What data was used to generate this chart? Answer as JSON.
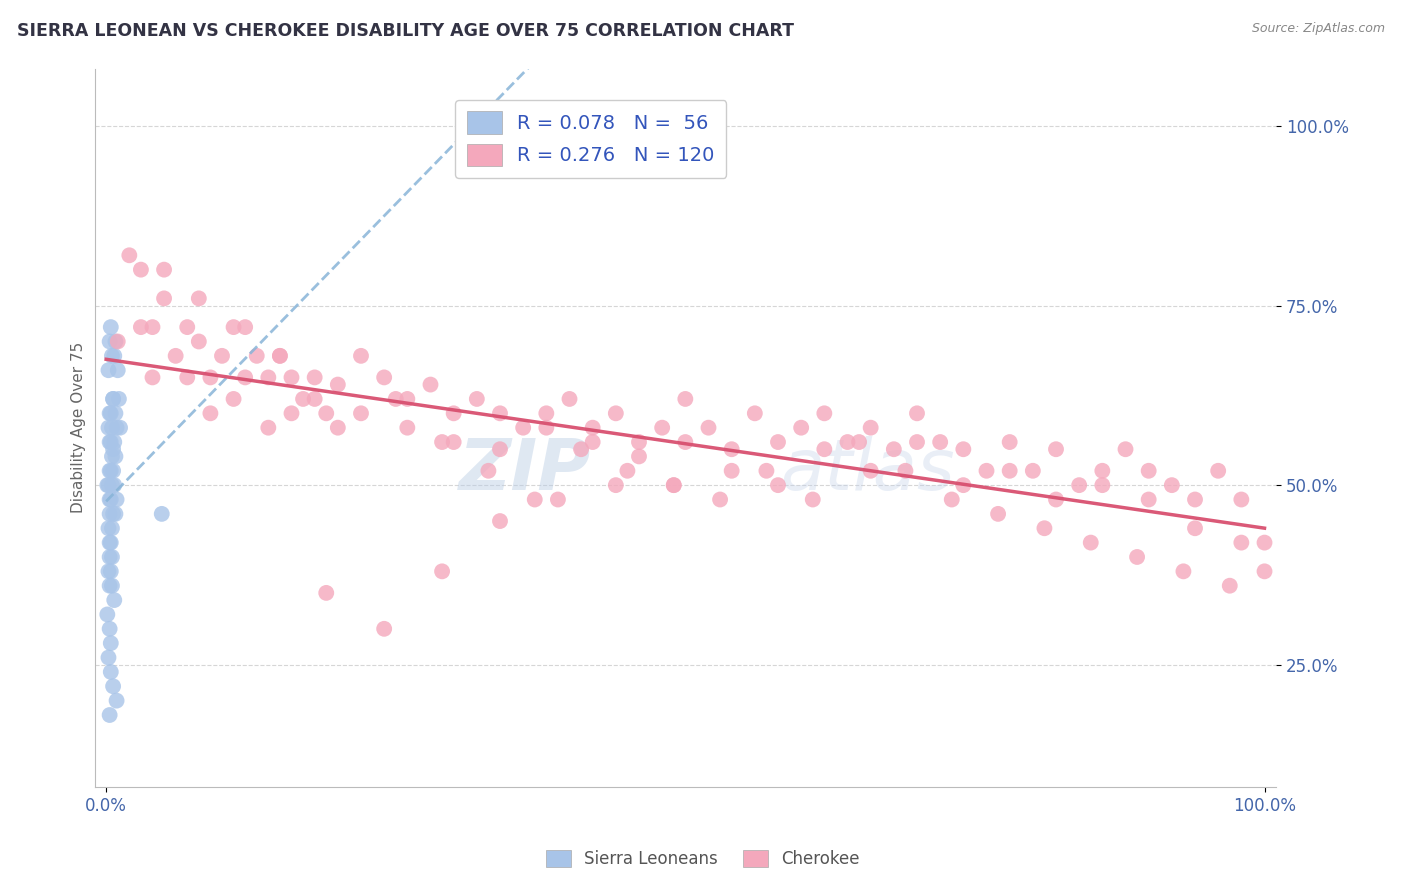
{
  "title": "SIERRA LEONEAN VS CHEROKEE DISABILITY AGE OVER 75 CORRELATION CHART",
  "source": "Source: ZipAtlas.com",
  "ylabel": "Disability Age Over 75",
  "legend_label1": "Sierra Leoneans",
  "legend_label2": "Cherokee",
  "r1": 0.078,
  "n1": 56,
  "r2": 0.276,
  "n2": 120,
  "color1": "#a8c4e8",
  "color2": "#f4a8bc",
  "trendline1_color": "#88b4d8",
  "trendline2_color": "#d85070",
  "watermark_color": "#c8d8ee",
  "background_color": "#ffffff",
  "grid_color": "#cccccc",
  "title_color": "#333344",
  "axis_label_color": "#4466aa",
  "ylabel_color": "#666666",
  "source_color": "#888888",
  "legend_text_color": "#3355bb",
  "bottom_legend_color": "#555555",
  "sierra_x": [
    0.4,
    0.8,
    1.2,
    0.5,
    0.3,
    0.6,
    1.0,
    0.7,
    0.2,
    0.9,
    0.4,
    1.1,
    0.6,
    0.8,
    0.3,
    0.5,
    0.4,
    0.2,
    0.7,
    0.6,
    0.3,
    0.5,
    0.8,
    0.4,
    0.6,
    0.3,
    0.2,
    0.7,
    0.1,
    0.5,
    0.3,
    0.4,
    0.9,
    0.3,
    0.6,
    0.8,
    0.5,
    0.2,
    0.3,
    0.4,
    0.5,
    0.3,
    0.4,
    0.2,
    0.3,
    0.5,
    0.7,
    0.1,
    0.3,
    0.4,
    4.8,
    0.2,
    0.4,
    0.6,
    0.9,
    0.3
  ],
  "sierra_y": [
    72,
    70,
    58,
    68,
    70,
    62,
    66,
    68,
    66,
    58,
    60,
    62,
    62,
    60,
    60,
    58,
    56,
    58,
    56,
    55,
    56,
    54,
    54,
    52,
    52,
    52,
    50,
    50,
    50,
    50,
    48,
    48,
    48,
    46,
    46,
    46,
    44,
    44,
    42,
    42,
    40,
    40,
    38,
    38,
    36,
    36,
    34,
    32,
    30,
    28,
    46,
    26,
    24,
    22,
    20,
    18
  ],
  "cherokee_x": [
    1,
    2,
    3,
    4,
    5,
    6,
    7,
    8,
    9,
    10,
    11,
    12,
    13,
    14,
    15,
    16,
    17,
    18,
    19,
    20,
    22,
    24,
    26,
    28,
    30,
    32,
    34,
    36,
    38,
    40,
    42,
    44,
    46,
    48,
    50,
    52,
    54,
    56,
    58,
    60,
    62,
    64,
    66,
    68,
    70,
    72,
    74,
    76,
    78,
    80,
    82,
    84,
    86,
    88,
    90,
    92,
    94,
    96,
    98,
    100,
    5,
    8,
    12,
    15,
    18,
    22,
    26,
    30,
    34,
    38,
    42,
    46,
    50,
    54,
    58,
    62,
    66,
    70,
    74,
    78,
    82,
    86,
    90,
    94,
    98,
    3,
    7,
    11,
    16,
    20,
    25,
    29,
    33,
    37,
    41,
    45,
    49,
    53,
    57,
    61,
    65,
    69,
    73,
    77,
    81,
    85,
    89,
    93,
    97,
    100,
    4,
    9,
    14,
    19,
    24,
    29,
    34,
    39,
    44,
    49
  ],
  "cherokee_y": [
    70,
    82,
    80,
    72,
    80,
    68,
    72,
    76,
    65,
    68,
    72,
    72,
    68,
    65,
    68,
    65,
    62,
    65,
    60,
    64,
    68,
    65,
    62,
    64,
    60,
    62,
    60,
    58,
    60,
    62,
    58,
    60,
    56,
    58,
    62,
    58,
    55,
    60,
    56,
    58,
    60,
    56,
    58,
    55,
    60,
    56,
    55,
    52,
    56,
    52,
    55,
    50,
    52,
    55,
    52,
    50,
    48,
    52,
    48,
    42,
    76,
    70,
    65,
    68,
    62,
    60,
    58,
    56,
    55,
    58,
    56,
    54,
    56,
    52,
    50,
    55,
    52,
    56,
    50,
    52,
    48,
    50,
    48,
    44,
    42,
    72,
    65,
    62,
    60,
    58,
    62,
    56,
    52,
    48,
    55,
    52,
    50,
    48,
    52,
    48,
    56,
    52,
    48,
    46,
    44,
    42,
    40,
    38,
    36,
    38,
    65,
    60,
    58,
    35,
    30,
    38,
    45,
    48,
    50,
    50
  ]
}
